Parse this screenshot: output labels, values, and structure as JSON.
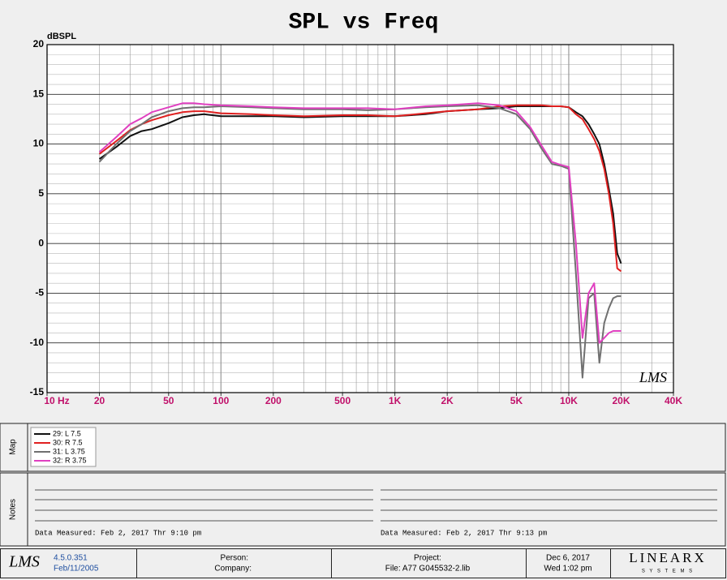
{
  "chart_data": {
    "type": "line",
    "title": "SPL vs Freq",
    "y_label": "dBSPL",
    "watermark": "LMS",
    "log_x": true,
    "grid": true,
    "xlim": [
      10,
      40000
    ],
    "xticks": [
      {
        "value": 10,
        "label": "10 Hz"
      },
      20,
      50,
      100,
      200,
      500,
      {
        "value": 1000,
        "label": "1K"
      },
      {
        "value": 2000,
        "label": "2K"
      },
      {
        "value": 5000,
        "label": "5K"
      },
      {
        "value": 10000,
        "label": "10K"
      },
      {
        "value": 20000,
        "label": "20K"
      },
      {
        "value": 40000,
        "label": "40K"
      }
    ],
    "ylim": [
      -15,
      20
    ],
    "yticks": [
      -15,
      -10,
      -5,
      0,
      5,
      10,
      15,
      20
    ],
    "x": [
      20,
      25,
      30,
      35,
      40,
      50,
      60,
      70,
      80,
      100,
      150,
      200,
      300,
      500,
      700,
      1000,
      1500,
      2000,
      3000,
      4000,
      5000,
      6000,
      7000,
      8000,
      9000,
      10000,
      11000,
      12000,
      13000,
      14000,
      15000,
      16000,
      17000,
      18000,
      19000,
      20000
    ],
    "series": [
      {
        "name": "29: L 7.5",
        "color": "#111111",
        "values": [
          8.5,
          9.7,
          10.8,
          11.3,
          11.5,
          12.1,
          12.7,
          12.9,
          13,
          12.8,
          12.8,
          12.8,
          12.7,
          12.8,
          12.8,
          12.8,
          13,
          13.3,
          13.5,
          13.6,
          13.8,
          13.8,
          13.8,
          13.8,
          13.8,
          13.7,
          13.2,
          12.8,
          12,
          11,
          10,
          8,
          5.5,
          3,
          -1,
          -2
        ]
      },
      {
        "name": "30: R 7.5",
        "color": "#e02020",
        "values": [
          9,
          10.3,
          11.4,
          12,
          12.4,
          12.9,
          13.2,
          13.3,
          13.3,
          13.1,
          13,
          12.9,
          12.8,
          12.9,
          12.9,
          12.8,
          13.1,
          13.3,
          13.5,
          13.8,
          13.9,
          13.9,
          13.9,
          13.8,
          13.8,
          13.7,
          13,
          12.5,
          11.5,
          10.5,
          9.3,
          7.5,
          5,
          2,
          -2.5,
          -2.8
        ]
      },
      {
        "name": "31: L 3.75",
        "color": "#707070",
        "values": [
          8.2,
          10,
          11.3,
          12,
          12.7,
          13.3,
          13.6,
          13.7,
          13.7,
          13.8,
          13.7,
          13.6,
          13.5,
          13.5,
          13.4,
          13.5,
          13.7,
          13.8,
          13.9,
          13.6,
          13,
          11.5,
          9.5,
          8,
          7.8,
          7.5,
          -3,
          -13.5,
          -5.5,
          -5,
          -12,
          -8,
          -6.5,
          -5.5,
          -5.3,
          -5.3
        ]
      },
      {
        "name": "32: R 3.75",
        "color": "#e040c0",
        "values": [
          9.2,
          10.7,
          12,
          12.6,
          13.2,
          13.7,
          14.1,
          14.1,
          14,
          13.9,
          13.8,
          13.7,
          13.6,
          13.6,
          13.6,
          13.5,
          13.8,
          13.9,
          14.1,
          13.9,
          13.3,
          11.7,
          9.8,
          8.2,
          7.9,
          7.7,
          0,
          -9.5,
          -5,
          -4,
          -10,
          -9.5,
          -9,
          -8.8,
          -8.8,
          -8.8
        ]
      }
    ]
  },
  "ui": {
    "map_label": "Map",
    "notes_label": "Notes",
    "notes": [
      "Data Measured: Feb  2, 2017  Thr  9:10 pm",
      "Data Measured: Feb  2, 2017  Thr  9:13 pm"
    ],
    "footer": {
      "logo": "LMS",
      "version": "4.5.0.351",
      "build_date": "Feb/11/2005",
      "person": "Person:",
      "company": "Company:",
      "project": "Project:",
      "file": "File: A77 G045532-2.lib",
      "date": "Dec 6, 2017",
      "time": "Wed  1:02 pm",
      "brand": "LINEARX",
      "brand_sub": "S Y S T E M S"
    }
  }
}
